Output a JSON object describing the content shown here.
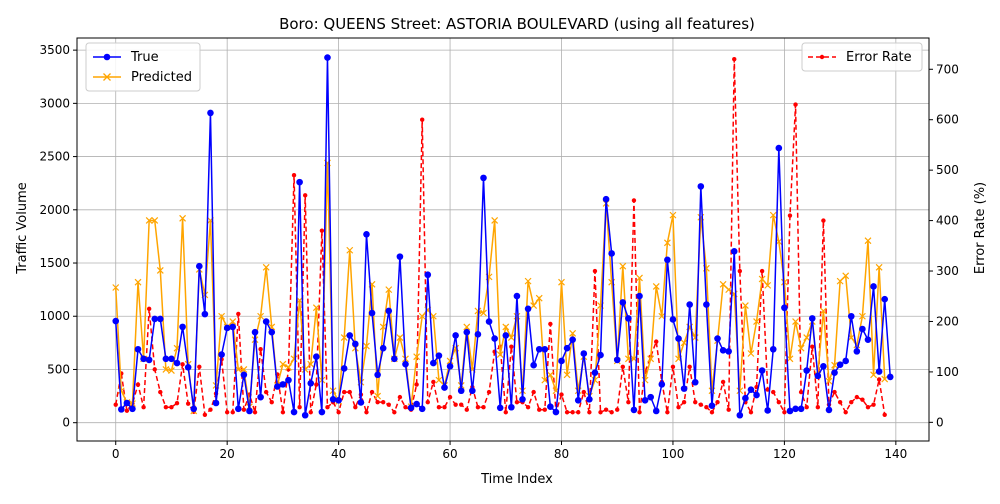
{
  "chart_data": {
    "type": "line",
    "title": "Boro: QUEENS Street: ASTORIA BOULEVARD (using all features)",
    "xlabel": "Time Index",
    "ylabel": "Traffic Volume",
    "y2label": "Error Rate (%)",
    "xlim": [
      -6.95,
      145.95
    ],
    "ylim": [
      -172,
      3614
    ],
    "y2lim": [
      -37,
      762
    ],
    "xticks": [
      0,
      20,
      40,
      60,
      80,
      100,
      120,
      140
    ],
    "yticks": [
      0,
      500,
      1000,
      1500,
      2000,
      2500,
      3000,
      3500
    ],
    "y2ticks": [
      0,
      100,
      200,
      300,
      400,
      500,
      600,
      700
    ],
    "grid": true,
    "legend_left": "upper-left",
    "legend_right": "upper-right",
    "colors": {
      "true": "#0000ff",
      "predicted": "#ffa500",
      "error": "#ff0000"
    },
    "series": [
      {
        "name": "True",
        "axis": "left",
        "style": "line-circle",
        "values": [
          955,
          125,
          185,
          130,
          690,
          600,
          590,
          975,
          975,
          600,
          600,
          560,
          900,
          520,
          130,
          1470,
          1020,
          2910,
          185,
          640,
          890,
          900,
          130,
          450,
          110,
          850,
          240,
          950,
          850,
          340,
          360,
          400,
          100,
          2260,
          70,
          370,
          620,
          100,
          3430,
          220,
          210,
          510,
          820,
          740,
          190,
          1770,
          1030,
          450,
          700,
          1050,
          600,
          1560,
          550,
          140,
          175,
          130,
          1390,
          560,
          630,
          330,
          530,
          820,
          300,
          850,
          300,
          830,
          2300,
          950,
          790,
          140,
          820,
          145,
          1190,
          220,
          1070,
          540,
          690,
          690,
          150,
          100,
          580,
          700,
          780,
          210,
          650,
          220,
          470,
          635,
          2100,
          1590,
          590,
          1130,
          980,
          120,
          1190,
          210,
          240,
          110,
          360,
          1530,
          970,
          790,
          320,
          1110,
          380,
          2220,
          1110,
          160,
          790,
          680,
          670,
          1610,
          70,
          230,
          310,
          260,
          490,
          115,
          690,
          2580,
          1080,
          110,
          130,
          130,
          490,
          980,
          440,
          530,
          120,
          470,
          545,
          580,
          1000,
          670,
          880,
          780,
          1280,
          480,
          1160,
          430
        ]
      },
      {
        "name": "Predicted",
        "axis": "left",
        "style": "line-x",
        "values": [
          1270,
          300,
          190,
          180,
          1320,
          600,
          1900,
          1900,
          1430,
          500,
          490,
          700,
          1920,
          550,
          110,
          1440,
          1200,
          1900,
          350,
          1000,
          900,
          950,
          500,
          500,
          150,
          780,
          1000,
          1460,
          900,
          350,
          550,
          520,
          600,
          1150,
          500,
          550,
          1080,
          400,
          2440,
          300,
          200,
          800,
          1620,
          700,
          380,
          720,
          1300,
          250,
          900,
          1250,
          600,
          800,
          600,
          150,
          620,
          1000,
          1060,
          1000,
          400,
          350,
          580,
          700,
          350,
          900,
          500,
          1050,
          1030,
          1370,
          1900,
          640,
          900,
          800,
          1000,
          300,
          1330,
          1100,
          1170,
          400,
          450,
          300,
          1320,
          450,
          840,
          300,
          620,
          250,
          400,
          1100,
          2060,
          1320,
          580,
          1470,
          600,
          600,
          1360,
          400,
          600,
          1280,
          1000,
          1690,
          1950,
          600,
          750,
          900,
          800,
          1930,
          1450,
          300,
          770,
          1300,
          1250,
          1210,
          300,
          1100,
          650,
          950,
          1350,
          1290,
          1950,
          1700,
          1320,
          600,
          950,
          700,
          800,
          950,
          450,
          1050,
          390,
          540,
          1330,
          1380,
          800,
          730,
          1000,
          1710,
          450,
          1460,
          410
        ]
      },
      {
        "name": "Error Rate",
        "axis": "right",
        "style": "dashed-dot",
        "values": [
          35,
          97,
          23,
          37,
          75,
          30,
          225,
          105,
          60,
          30,
          30,
          38,
          115,
          37,
          21,
          110,
          15,
          25,
          57,
          125,
          20,
          20,
          215,
          25,
          55,
          20,
          145,
          60,
          40,
          95,
          20,
          105,
          490,
          30,
          450,
          20,
          75,
          380,
          30,
          40,
          20,
          60,
          60,
          30,
          55,
          20,
          60,
          40,
          40,
          35,
          20,
          50,
          30,
          25,
          75,
          600,
          40,
          80,
          30,
          30,
          50,
          35,
          35,
          25,
          70,
          30,
          30,
          60,
          140,
          150,
          20,
          150,
          40,
          40,
          30,
          60,
          25,
          25,
          195,
          20,
          55,
          20,
          20,
          20,
          60,
          20,
          300,
          20,
          25,
          20,
          25,
          110,
          40,
          440,
          20,
          100,
          130,
          160,
          80,
          20,
          110,
          30,
          40,
          110,
          40,
          35,
          30,
          20,
          40,
          80,
          25,
          720,
          300,
          40,
          20,
          70,
          300,
          65,
          60,
          40,
          20,
          410,
          630,
          60,
          30,
          150,
          30,
          400,
          35,
          60,
          40,
          20,
          40,
          50,
          45,
          30,
          35,
          85,
          15
        ]
      }
    ]
  }
}
